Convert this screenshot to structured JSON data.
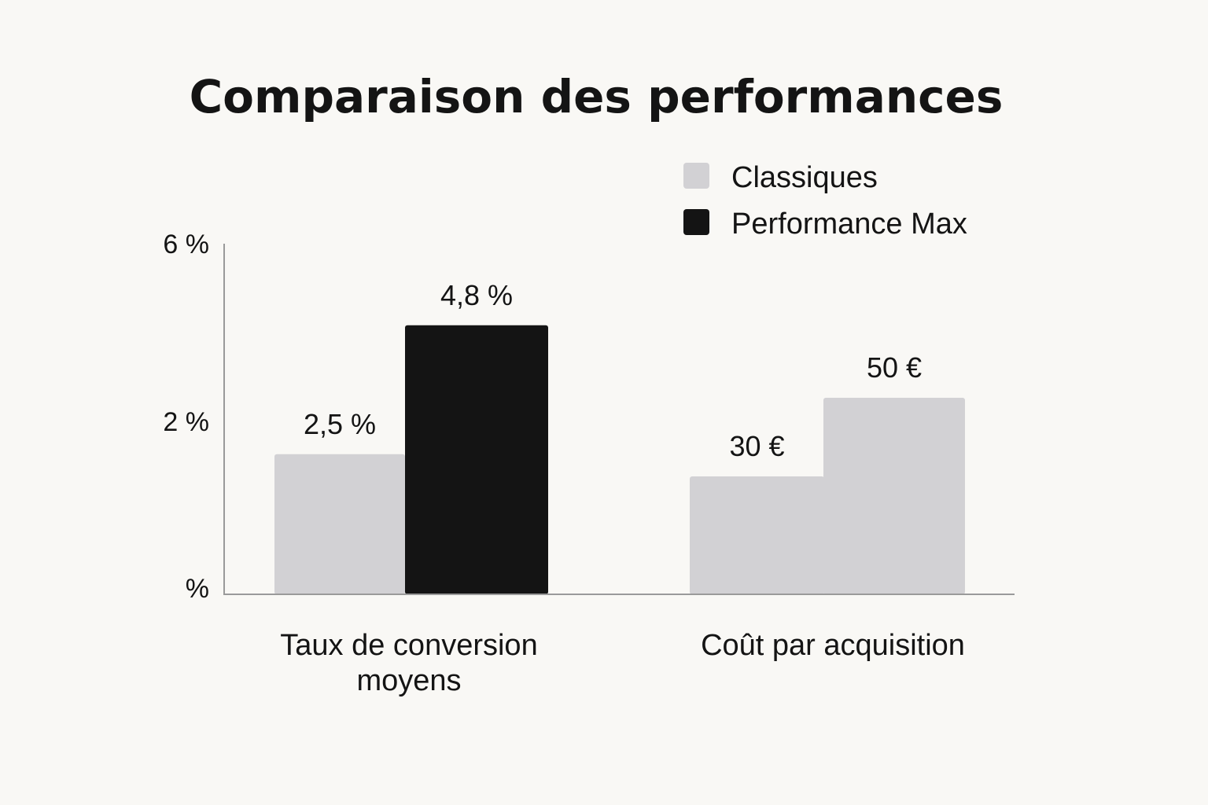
{
  "chart_data": {
    "type": "bar",
    "title": "Comparaison des performances",
    "xlabel": "",
    "ylabel": "",
    "legend": {
      "position": "top-right",
      "entries": [
        "Classiques",
        "Performance Max"
      ]
    },
    "y_ticks": [
      "6 %",
      "2 %",
      "%"
    ],
    "grid": false,
    "categories": [
      {
        "lines": [
          "Taux de conversion",
          "moyens"
        ]
      },
      {
        "lines": [
          "Coût par acquisition"
        ]
      }
    ],
    "series": [
      {
        "name": "Classiques",
        "color": "#d2d1d4",
        "values": [
          2.5,
          30
        ],
        "labels": [
          "2,5 %",
          "30 €"
        ]
      },
      {
        "name": "Performance Max",
        "colors": [
          "#141414",
          "#d2d1d4"
        ],
        "values": [
          4.8,
          50
        ],
        "labels": [
          "4,8 %",
          "50 €"
        ]
      }
    ]
  }
}
